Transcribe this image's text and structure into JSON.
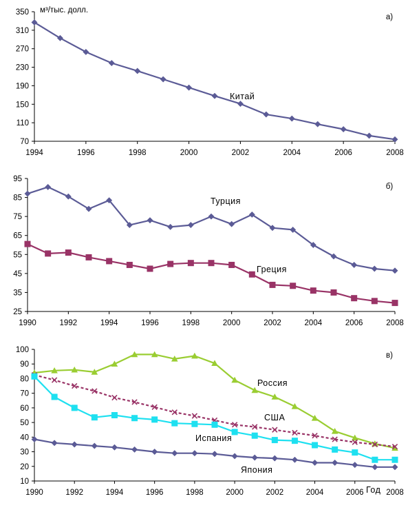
{
  "chart_data": [
    {
      "type": "line",
      "panel_label": "а)",
      "ylabel": "м³/тыс. долл.",
      "xlim": [
        1994,
        2008
      ],
      "ylim": [
        70,
        350
      ],
      "xticks": [
        1994,
        1996,
        1998,
        2000,
        2002,
        2004,
        2006,
        2008
      ],
      "yticks": [
        70,
        110,
        150,
        190,
        230,
        270,
        310,
        350
      ],
      "grid": false,
      "series": [
        {
          "name": "Китай",
          "color": "#5b5b96",
          "marker": "diamond",
          "x": [
            1994,
            1995,
            1996,
            1997,
            1998,
            1999,
            2000,
            2001,
            2002,
            2003,
            2004,
            2005,
            2006,
            2007,
            2008
          ],
          "y": [
            327,
            293,
            263,
            239,
            222,
            204,
            186,
            168,
            151,
            128,
            119,
            107,
            96,
            82,
            74
          ]
        }
      ]
    },
    {
      "type": "line",
      "panel_label": "б)",
      "xlim": [
        1990,
        2008
      ],
      "ylim": [
        25,
        95
      ],
      "xticks": [
        1990,
        1992,
        1994,
        1996,
        1998,
        2000,
        2002,
        2004,
        2006,
        2008
      ],
      "yticks": [
        25,
        35,
        45,
        55,
        65,
        75,
        85,
        95
      ],
      "grid": false,
      "series": [
        {
          "name": "Турция",
          "color": "#5b5b96",
          "marker": "diamond",
          "x": [
            1990,
            1991,
            1992,
            1993,
            1994,
            1995,
            1996,
            1997,
            1998,
            1999,
            2000,
            2001,
            2002,
            2003,
            2004,
            2005,
            2006,
            2007,
            2008
          ],
          "y": [
            87.0,
            90.5,
            85.5,
            79.0,
            83.5,
            70.5,
            73.0,
            69.5,
            70.5,
            75.0,
            71.0,
            76.0,
            69.0,
            68.0,
            60.0,
            54.0,
            49.5,
            47.5,
            46.5
          ]
        },
        {
          "name": "Греция",
          "color": "#993366",
          "marker": "square",
          "x": [
            1990,
            1991,
            1992,
            1993,
            1994,
            1995,
            1996,
            1997,
            1998,
            1999,
            2000,
            2001,
            2002,
            2003,
            2004,
            2005,
            2006,
            2007,
            2008
          ],
          "y": [
            60.5,
            55.5,
            56.0,
            53.5,
            51.5,
            49.5,
            47.5,
            50.0,
            50.5,
            50.5,
            49.5,
            44.5,
            39.0,
            38.5,
            36.0,
            35.0,
            32.0,
            30.5,
            29.5
          ]
        }
      ]
    },
    {
      "type": "line",
      "panel_label": "в)",
      "xlabel": "Год",
      "xlim": [
        1990,
        2008
      ],
      "ylim": [
        10,
        100
      ],
      "xticks": [
        1990,
        1992,
        1994,
        1996,
        1998,
        2000,
        2002,
        2004,
        2006,
        2008
      ],
      "yticks": [
        10,
        20,
        30,
        40,
        50,
        60,
        70,
        80,
        90,
        100
      ],
      "grid": false,
      "series": [
        {
          "name": "Россия",
          "color": "#9acd32",
          "marker": "triangle",
          "x": [
            1990,
            1991,
            1992,
            1993,
            1994,
            1995,
            1996,
            1997,
            1998,
            1999,
            2000,
            2001,
            2002,
            2003,
            2004,
            2005,
            2006,
            2007,
            2008
          ],
          "y": [
            84,
            85.5,
            86,
            84.5,
            90,
            96.5,
            96.5,
            93.5,
            95.5,
            90.5,
            79,
            72,
            67.5,
            61,
            53,
            44,
            39.5,
            35.5,
            32.5
          ]
        },
        {
          "name": "США",
          "color": "#993366",
          "marker": "x",
          "dashed": true,
          "x": [
            1990,
            1991,
            1992,
            1993,
            1994,
            1995,
            1996,
            1997,
            1998,
            1999,
            2000,
            2001,
            2002,
            2003,
            2004,
            2005,
            2006,
            2007,
            2008
          ],
          "y": [
            82.5,
            79,
            75,
            71.5,
            67,
            64,
            60.5,
            57,
            54.5,
            51.5,
            48.5,
            47,
            45,
            43,
            41,
            38.5,
            36.5,
            35,
            33.5
          ]
        },
        {
          "name": "Испания",
          "color": "#1ee0f0",
          "marker": "square",
          "x": [
            1990,
            1991,
            1992,
            1993,
            1994,
            1995,
            1996,
            1997,
            1998,
            1999,
            2000,
            2001,
            2002,
            2003,
            2004,
            2005,
            2006,
            2007,
            2008
          ],
          "y": [
            81.5,
            67.5,
            60,
            53.5,
            55,
            53,
            52,
            49.5,
            49,
            48.5,
            43.5,
            41,
            38,
            37.5,
            34.5,
            31.5,
            29.5,
            24.5,
            24.5
          ]
        },
        {
          "name": "Япония",
          "color": "#5b5b96",
          "marker": "diamond",
          "x": [
            1990,
            1991,
            1992,
            1993,
            1994,
            1995,
            1996,
            1997,
            1998,
            1999,
            2000,
            2001,
            2002,
            2003,
            2004,
            2005,
            2006,
            2007,
            2008
          ],
          "y": [
            38.5,
            36,
            35,
            34,
            33,
            31.5,
            30,
            29,
            29,
            28.5,
            27,
            26,
            25.5,
            24.5,
            22.5,
            22.5,
            21,
            19.5,
            19.5
          ]
        }
      ]
    }
  ]
}
